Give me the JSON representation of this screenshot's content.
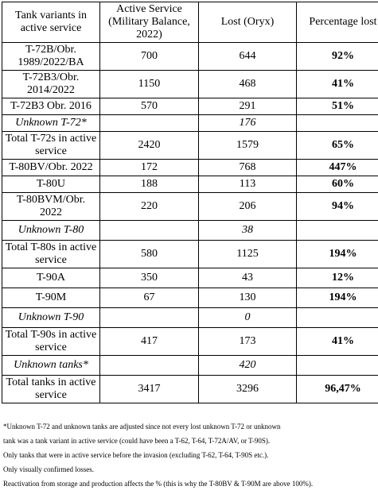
{
  "headers": [
    "Tank variants in active service",
    "Active Service (Military Balance, 2022)",
    "Lost (Oryx)",
    "Percentage lost"
  ],
  "rows": [
    {
      "variant": "T-72B/Obr. 1989/2022/BA",
      "active": "700",
      "lost": "644",
      "pct": "92%"
    },
    {
      "variant": "T-72B3/Obr. 2014/2022",
      "active": "1150",
      "lost": "468",
      "pct": "41%"
    },
    {
      "variant": "T-72B3 Obr. 2016",
      "active": "570",
      "lost": "291",
      "pct": "51%"
    },
    {
      "variant": "Unknown T-72*",
      "active": "",
      "lost": "176",
      "pct": ""
    },
    {
      "variant": "Total T-72s in active service",
      "active": "2420",
      "lost": "1579",
      "pct": "65%"
    },
    {
      "variant": "T-80BV/Obr. 2022",
      "active": "172",
      "lost": "768",
      "pct": "447%"
    },
    {
      "variant": "T-80U",
      "active": "188",
      "lost": "113",
      "pct": "60%"
    },
    {
      "variant": "T-80BVM/Obr. 2022",
      "active": "220",
      "lost": "206",
      "pct": "94%"
    },
    {
      "variant": "Unknown T-80",
      "active": "",
      "lost": "38",
      "pct": ""
    },
    {
      "variant": "Total T-80s in active service",
      "active": "580",
      "lost": "1125",
      "pct": "194%"
    },
    {
      "variant": "T-90A",
      "active": "350",
      "lost": "43",
      "pct": "12%"
    },
    {
      "variant": "T-90M",
      "active": "67",
      "lost": "130",
      "pct": "194%"
    },
    {
      "variant": "Unknown T-90",
      "active": "",
      "lost": "0",
      "pct": ""
    },
    {
      "variant": "Total T-90s in active service",
      "active": "417",
      "lost": "173",
      "pct": "41%"
    },
    {
      "variant": "Unknown tanks*",
      "active": "",
      "lost": "420",
      "pct": ""
    },
    {
      "variant": "Total tanks in active service",
      "active": "3417",
      "lost": "3296",
      "pct": "96,47%"
    }
  ],
  "notes": [
    "*Unknown T-72 and unknown tanks are adjusted since not every lost unknown T-72 or unknown",
    "tank was a tank variant in active service (could have been a T-62, T-64, T-72A/AV, or T-90S).",
    "Only tanks that were in active service before the invasion (excluding T-62, T-64, T-90S etc.).",
    "Only visually confirmed losses.",
    "Reactivation from storage and production affects the % (this is why the T-80BV & T-90M are above 100%)."
  ]
}
